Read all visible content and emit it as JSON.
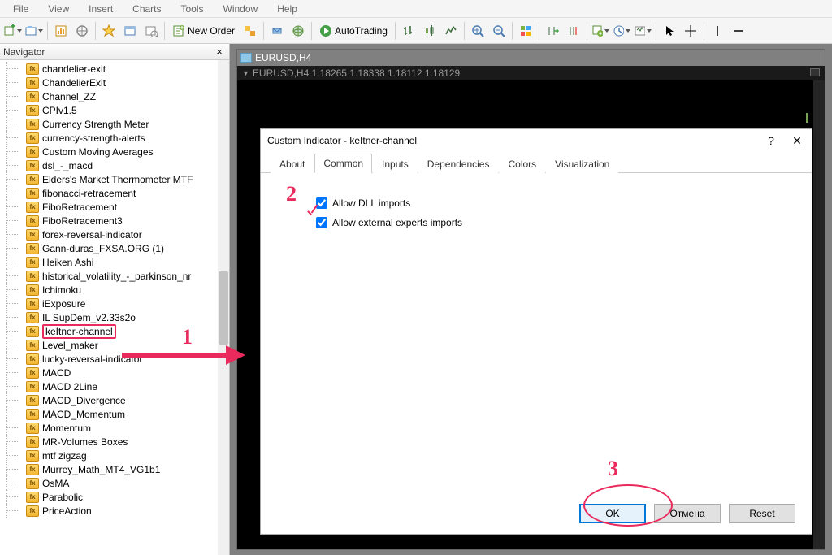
{
  "menu": {
    "items": [
      "File",
      "View",
      "Insert",
      "Charts",
      "Tools",
      "Window",
      "Help"
    ]
  },
  "toolbar": {
    "new_order": "New Order",
    "autotrading": "AutoTrading"
  },
  "navigator": {
    "title": "Navigator",
    "items": [
      "chandelier-exit",
      "ChandelierExit",
      "Channel_ZZ",
      "CPIv1.5",
      "Currency Strength Meter",
      "currency-strength-alerts",
      "Custom Moving Averages",
      "dsl_-_macd",
      "Elders's Market Thermometer MTF",
      "fibonacci-retracement",
      "FiboRetracement",
      "FiboRetracement3",
      "forex-reversal-indicator",
      "Gann-duras_FXSA.ORG (1)",
      "Heiken Ashi",
      "historical_volatility_-_parkinson_nr",
      "Ichimoku",
      "iExposure",
      "IL SupDem_v2.33s2o",
      "keItner-channel",
      "Level_maker",
      "lucky-reversal-indicator",
      "MACD",
      "MACD 2Line",
      "MACD_Divergence",
      "MACD_Momentum",
      "Momentum",
      "MR-Volumes Boxes",
      "mtf zigzag",
      "Murrey_Math_MT4_VG1b1",
      "OsMA",
      "Parabolic",
      "PriceAction"
    ],
    "selected_index": 19
  },
  "chart": {
    "title": "EURUSD,H4",
    "subtitle": "EURUSD,H4  1.18265 1.18338 1.18112 1.18129"
  },
  "dialog": {
    "title": "Custom Indicator - keItner-channel",
    "tabs": [
      "About",
      "Common",
      "Inputs",
      "Dependencies",
      "Colors",
      "Visualization"
    ],
    "active_tab": 1,
    "allow_dll": "Allow DLL imports",
    "allow_dll_checked": true,
    "allow_ext": "Allow external experts imports",
    "allow_ext_checked": true,
    "ok": "OK",
    "cancel": "Отмена",
    "reset": "Reset"
  },
  "annotations": {
    "n1": "1",
    "n2": "2",
    "n3": "3"
  },
  "colors": {
    "accent_pink": "#ea2a5c",
    "dialog_primary": "#0078d7",
    "chart_bg": "#000000",
    "chart_text": "#9a9a9a"
  }
}
